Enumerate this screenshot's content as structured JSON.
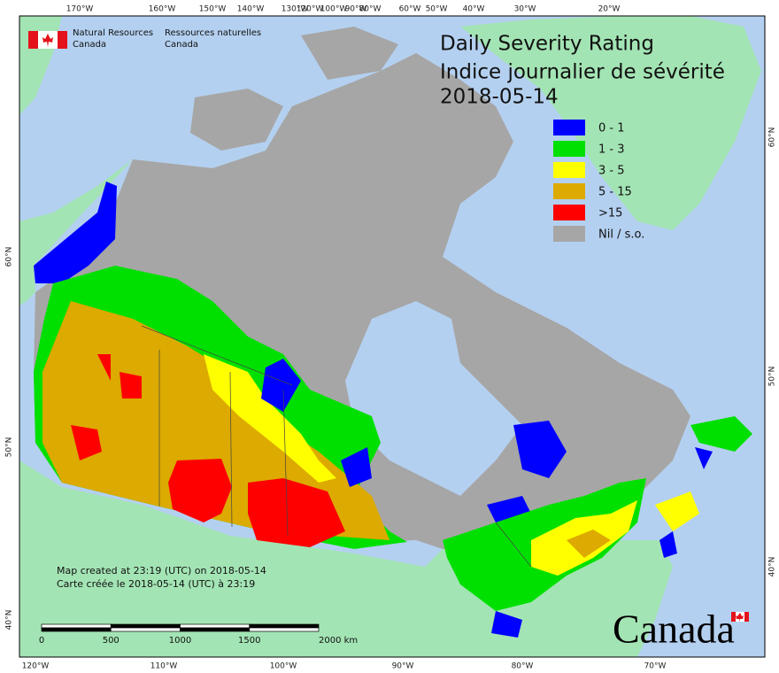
{
  "header": {
    "org_en": [
      "Natural Resources",
      "Canada"
    ],
    "org_fr": [
      "Ressources naturelles",
      "Canada"
    ]
  },
  "title": [
    "Daily Severity Rating",
    "Indice journalier de sévérité",
    "2018-05-14"
  ],
  "legend": [
    {
      "label": "0 - 1",
      "color": "#0000ff"
    },
    {
      "label": "1 - 3",
      "color": "#00e000"
    },
    {
      "label": "3 - 5",
      "color": "#ffff00"
    },
    {
      "label": "5 - 15",
      "color": "#dcaa00"
    },
    {
      "label": ">15",
      "color": "#ff0000"
    },
    {
      "label": "Nil / s.o.",
      "color": "#a6a6a6"
    }
  ],
  "footer": [
    "Map created at 23:19 (UTC) on 2018-05-14",
    "Carte créée le 2018-05-14 (UTC) à 23:19"
  ],
  "scale_bar": [
    "0",
    "500",
    "1000",
    "1500",
    "2000 km"
  ],
  "graticule": {
    "top": [
      "170°W",
      "160°W",
      "150°W",
      "140°W",
      "130°W",
      "120°W",
      "100°W",
      "90°W",
      "80°W",
      "60°W",
      "50°W",
      "40°W",
      "30°W",
      "20°W"
    ],
    "bottom": [
      "120°W",
      "110°W",
      "100°W",
      "90°W",
      "80°W",
      "70°W"
    ],
    "left": [
      "60°N",
      "50°N",
      "40°N"
    ],
    "right": [
      "60°N",
      "50°N",
      "40°N"
    ]
  },
  "wordmark": "Canada"
}
